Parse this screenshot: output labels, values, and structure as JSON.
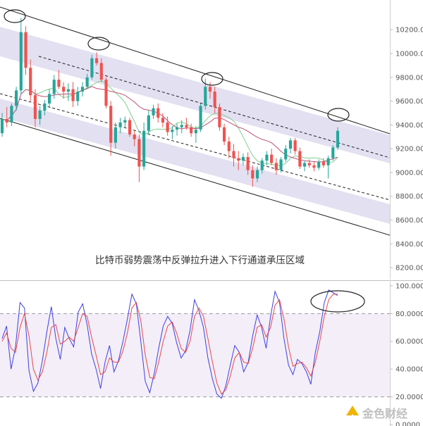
{
  "chart_data": [
    {
      "type": "candlestick",
      "title": "",
      "annotation": "比特币弱势震荡中反弹拉升进入下行通道承压区域",
      "ylim": [
        8100,
        10450
      ],
      "y_ticks": [
        8200,
        8400,
        8600,
        8800,
        9000,
        9200,
        9400,
        9600,
        9800,
        10000,
        10200
      ],
      "y_tick_labels": [
        "8200.00",
        "8400.00",
        "8600.00",
        "8800.00",
        "9000.00",
        "9200.00",
        "9400.00",
        "9600.00",
        "9800.00",
        "10000.00",
        "10200.00"
      ],
      "grid": false,
      "colors": {
        "up": "#26a69a",
        "down": "#ef5350",
        "channel_fill": "#e3e0f1",
        "ma_fast": "#7fcf8f",
        "ma_slow": "#c0507a",
        "highlight_circle": "#222222"
      },
      "series": [
        {
          "values": [
            [
              9330,
              9500,
              9300,
              9450
            ],
            [
              9450,
              9550,
              9380,
              9420
            ],
            [
              9420,
              9580,
              9390,
              9560
            ],
            [
              9560,
              9720,
              9520,
              9690
            ],
            [
              9690,
              10300,
              9660,
              10180
            ],
            [
              10180,
              10230,
              9820,
              9880
            ],
            [
              9880,
              9950,
              9600,
              9650
            ],
            [
              9650,
              9700,
              9380,
              9450
            ],
            [
              9450,
              9560,
              9400,
              9520
            ],
            [
              9520,
              9610,
              9480,
              9580
            ],
            [
              9580,
              9700,
              9550,
              9660
            ],
            [
              9660,
              9820,
              9620,
              9780
            ],
            [
              9780,
              9860,
              9700,
              9720
            ],
            [
              9720,
              9760,
              9620,
              9680
            ],
            [
              9680,
              9750,
              9600,
              9700
            ],
            [
              9700,
              9760,
              9550,
              9600
            ],
            [
              9600,
              9720,
              9560,
              9680
            ],
            [
              9680,
              9760,
              9640,
              9720
            ],
            [
              9720,
              9830,
              9700,
              9800
            ],
            [
              9800,
              9990,
              9780,
              9960
            ],
            [
              9960,
              10010,
              9900,
              9920
            ],
            [
              9920,
              9960,
              9760,
              9780
            ],
            [
              9780,
              9800,
              9540,
              9560
            ],
            [
              9560,
              9600,
              9140,
              9250
            ],
            [
              9250,
              9420,
              9200,
              9380
            ],
            [
              9380,
              9460,
              9330,
              9420
            ],
            [
              9420,
              9470,
              9380,
              9440
            ],
            [
              9440,
              9460,
              9300,
              9320
            ],
            [
              9320,
              9350,
              9220,
              9280
            ],
            [
              9280,
              9320,
              8920,
              9050
            ],
            [
              9050,
              9420,
              9020,
              9350
            ],
            [
              9350,
              9520,
              9320,
              9480
            ],
            [
              9480,
              9570,
              9450,
              9540
            ],
            [
              9540,
              9580,
              9420,
              9460
            ],
            [
              9460,
              9500,
              9380,
              9420
            ],
            [
              9420,
              9470,
              9310,
              9340
            ],
            [
              9340,
              9390,
              9280,
              9360
            ],
            [
              9360,
              9410,
              9310,
              9380
            ],
            [
              9380,
              9440,
              9330,
              9400
            ],
            [
              9400,
              9460,
              9360,
              9380
            ],
            [
              9380,
              9410,
              9300,
              9330
            ],
            [
              9330,
              9390,
              9250,
              9360
            ],
            [
              9360,
              9580,
              9340,
              9560
            ],
            [
              9560,
              9790,
              9530,
              9720
            ],
            [
              9720,
              9760,
              9620,
              9680
            ],
            [
              9680,
              9720,
              9500,
              9550
            ],
            [
              9550,
              9580,
              9350,
              9380
            ],
            [
              9380,
              9410,
              9230,
              9260
            ],
            [
              9260,
              9300,
              9120,
              9180
            ],
            [
              9180,
              9240,
              9050,
              9120
            ],
            [
              9120,
              9180,
              9020,
              9100
            ],
            [
              9100,
              9160,
              9060,
              9130
            ],
            [
              9130,
              9170,
              8980,
              9020
            ],
            [
              9020,
              9060,
              8880,
              8950
            ],
            [
              8950,
              9050,
              8920,
              9020
            ],
            [
              9020,
              9120,
              8990,
              9100
            ],
            [
              9100,
              9180,
              9060,
              9150
            ],
            [
              9150,
              9200,
              9060,
              9080
            ],
            [
              9080,
              9120,
              8980,
              9020
            ],
            [
              9020,
              9130,
              9000,
              9110
            ],
            [
              9110,
              9230,
              9090,
              9200
            ],
            [
              9200,
              9290,
              9160,
              9270
            ],
            [
              9270,
              9290,
              9150,
              9180
            ],
            [
              9180,
              9210,
              9030,
              9050
            ],
            [
              9050,
              9100,
              9010,
              9080
            ],
            [
              9080,
              9110,
              9040,
              9060
            ],
            [
              9060,
              9090,
              9010,
              9040
            ],
            [
              9040,
              9110,
              9020,
              9090
            ],
            [
              9090,
              9120,
              9040,
              9060
            ],
            [
              9060,
              9140,
              8950,
              9120
            ],
            [
              9120,
              9230,
              9100,
              9210
            ],
            [
              9210,
              9380,
              9190,
              9350
            ]
          ]
        }
      ]
    },
    {
      "type": "line",
      "title": "",
      "ylim": [
        0,
        103
      ],
      "y_ticks": [
        0,
        20,
        40,
        60,
        80,
        100
      ],
      "y_tick_labels": [
        "0.0000",
        "20.0000",
        "40.0000",
        "60.0000",
        "80.0000",
        "100.0000"
      ],
      "overbought": 80,
      "oversold": 20,
      "colors": {
        "k": "#3f3fe0",
        "d": "#e8484b",
        "band": "#f3eef8"
      },
      "series": [
        {
          "values": [
            62,
            71,
            40,
            56,
            88,
            84,
            39,
            24,
            30,
            46,
            67,
            85,
            62,
            47,
            70,
            62,
            56,
            81,
            87,
            72,
            51,
            40,
            26,
            45,
            57,
            38,
            46,
            60,
            76,
            94,
            87,
            60,
            31,
            23,
            37,
            55,
            71,
            78,
            73,
            59,
            48,
            53,
            68,
            90,
            82,
            70,
            48,
            33,
            22,
            19,
            28,
            43,
            57,
            52,
            38,
            45,
            64,
            79,
            70,
            55,
            78,
            96,
            88,
            62,
            43,
            36,
            47,
            44,
            38,
            29,
            52,
            67,
            88,
            97,
            95,
            93
          ]
        },
        {
          "values": [
            60,
            66,
            55,
            52,
            70,
            80,
            64,
            40,
            32,
            38,
            52,
            70,
            72,
            58,
            60,
            63,
            60,
            70,
            80,
            78,
            63,
            50,
            36,
            38,
            48,
            45,
            45,
            53,
            66,
            84,
            88,
            75,
            50,
            34,
            33,
            45,
            60,
            71,
            74,
            66,
            55,
            52,
            60,
            78,
            84,
            78,
            62,
            45,
            30,
            22,
            25,
            35,
            48,
            52,
            45,
            44,
            55,
            70,
            72,
            63,
            70,
            86,
            90,
            76,
            56,
            42,
            44,
            45,
            41,
            35,
            45,
            60,
            78,
            90,
            94,
            94
          ]
        }
      ]
    }
  ],
  "watermark": "金色财经"
}
